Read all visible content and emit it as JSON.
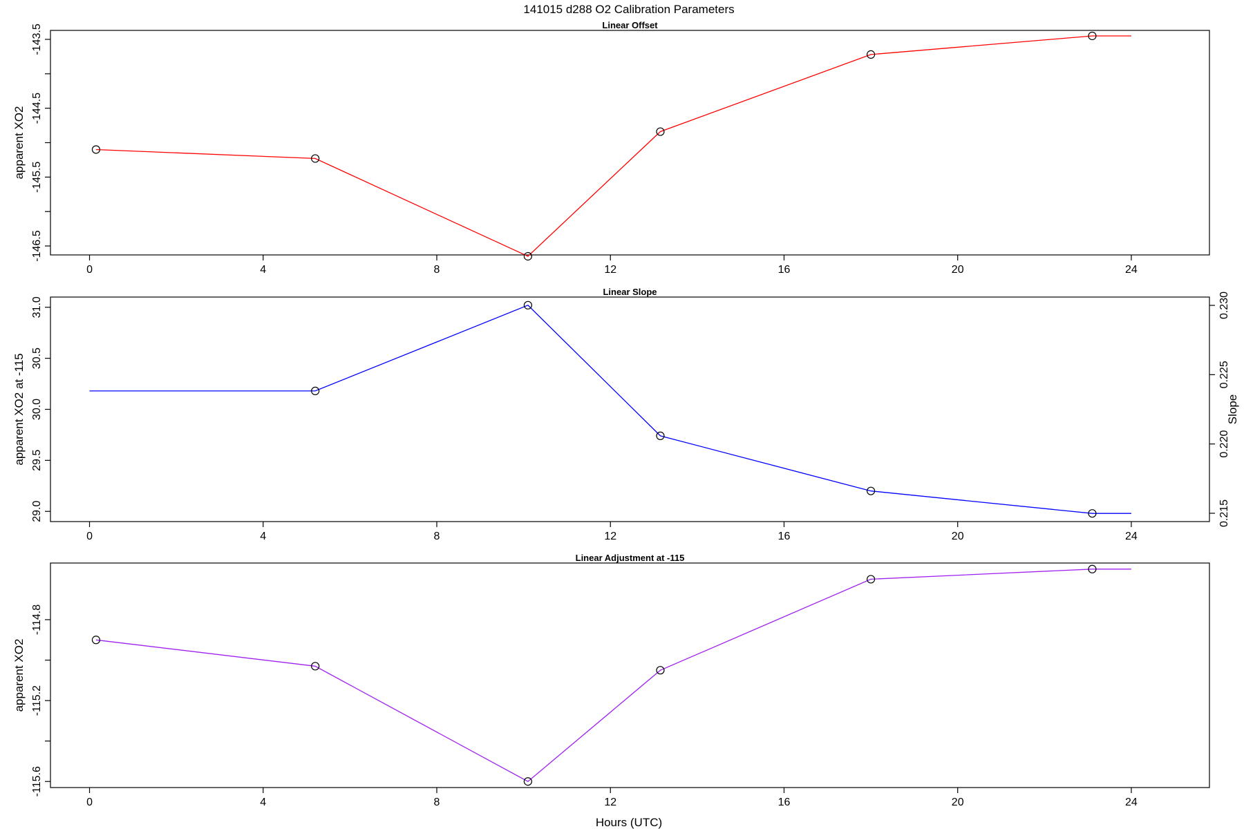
{
  "figure": {
    "title": "141015   d288   O2 Calibration Parameters",
    "xlabel": "Hours (UTC)"
  },
  "chart_data": [
    {
      "type": "line",
      "title": "Linear Offset",
      "xlabel": "",
      "ylabel": "apparent XO2",
      "xlim": [
        -0.9,
        25.8
      ],
      "ylim": [
        -146.63,
        -143.37
      ],
      "x_ticks": [
        0,
        4,
        8,
        12,
        16,
        20,
        24
      ],
      "x_tick_labels": [
        "0",
        "4",
        "8",
        "12",
        "16",
        "20",
        "24"
      ],
      "y_ticks": [
        -146.5,
        -146.0,
        -145.5,
        -145.0,
        -144.5,
        -144.0,
        -143.5
      ],
      "y_tick_labels": [
        "-146.5",
        "",
        "-145.5",
        "",
        "-144.5",
        "",
        "-143.5"
      ],
      "line_color": "#ff0000",
      "series": [
        {
          "line_x": [
            0.15,
            5.2,
            10.1,
            13.15,
            18.0,
            23.1,
            24.0
          ],
          "line_y": [
            -145.1,
            -145.23,
            -146.65,
            -144.84,
            -143.72,
            -143.45,
            -143.45
          ],
          "point_x": [
            0.15,
            5.2,
            10.1,
            13.15,
            18.0,
            23.1
          ],
          "point_y": [
            -145.1,
            -145.23,
            -146.65,
            -144.84,
            -143.72,
            -143.45
          ]
        }
      ]
    },
    {
      "type": "line",
      "title": "Linear Slope",
      "xlabel": "",
      "ylabel": "apparent XO2 at -115",
      "y2label": "Slope",
      "xlim": [
        -0.9,
        25.8
      ],
      "ylim": [
        28.9,
        31.1
      ],
      "y2lim": [
        0.2144,
        0.2306
      ],
      "x_ticks": [
        0,
        4,
        8,
        12,
        16,
        20,
        24
      ],
      "x_tick_labels": [
        "0",
        "4",
        "8",
        "12",
        "16",
        "20",
        "24"
      ],
      "y_ticks": [
        29.0,
        29.5,
        30.0,
        30.5,
        31.0
      ],
      "y_tick_labels": [
        "29.0",
        "29.5",
        "30.0",
        "30.5",
        "31.0"
      ],
      "y2_ticks": [
        0.215,
        0.22,
        0.225,
        0.23
      ],
      "y2_tick_labels": [
        "0.215",
        "0.220",
        "0.225",
        "0.230"
      ],
      "line_color": "#0000ff",
      "series": [
        {
          "line_x": [
            0.0,
            5.2,
            10.1,
            13.15,
            18.0,
            23.1,
            24.0
          ],
          "line_y": [
            30.18,
            30.18,
            31.02,
            29.74,
            29.2,
            28.98,
            28.98
          ],
          "point_x": [
            5.2,
            10.1,
            13.15,
            18.0,
            23.1
          ],
          "point_y": [
            30.18,
            31.02,
            29.74,
            29.2,
            28.98
          ]
        }
      ]
    },
    {
      "type": "line",
      "title": "Linear Adjustment at -115",
      "xlabel": "",
      "ylabel": "apparent XO2",
      "xlim": [
        -0.9,
        25.8
      ],
      "ylim": [
        -115.63,
        -114.52
      ],
      "x_ticks": [
        0,
        4,
        8,
        12,
        16,
        20,
        24
      ],
      "x_tick_labels": [
        "0",
        "4",
        "8",
        "12",
        "16",
        "20",
        "24"
      ],
      "y_ticks": [
        -115.6,
        -115.4,
        -115.2,
        -115.0,
        -114.8
      ],
      "y_tick_labels": [
        "-115.6",
        "",
        "-115.2",
        "",
        "-114.8"
      ],
      "line_color": "#a020f0",
      "series": [
        {
          "line_x": [
            0.15,
            5.2,
            10.1,
            13.15,
            18.0,
            23.1,
            24.0
          ],
          "line_y": [
            -114.9,
            -115.03,
            -115.6,
            -115.05,
            -114.6,
            -114.55,
            -114.55
          ],
          "point_x": [
            0.15,
            5.2,
            10.1,
            13.15,
            18.0,
            23.1
          ],
          "point_y": [
            -114.9,
            -115.03,
            -115.6,
            -115.05,
            -114.6,
            -114.55
          ]
        }
      ]
    }
  ]
}
